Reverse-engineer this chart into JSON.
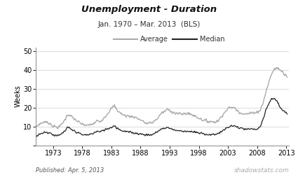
{
  "title": "Unemployment - Duration",
  "subtitle": "Jan. 1970 – Mar. 2013  (BLS)",
  "ylabel": "Weeks",
  "xlabel_ticks": [
    1973,
    1978,
    1983,
    1988,
    1993,
    1998,
    2003,
    2008,
    2013
  ],
  "ylim": [
    0,
    52
  ],
  "yticks": [
    0,
    10,
    20,
    30,
    40,
    50
  ],
  "legend_avg": "Average",
  "legend_med": "Median",
  "avg_color": "#aaaaaa",
  "med_color": "#222222",
  "published_text": "Published: Apr. 5, 2013",
  "watermark_text": "shadowstats.com",
  "background_color": "#ffffff",
  "avg_anchor_years": [
    1970.0,
    1970.5,
    1971.5,
    1972.5,
    1973.0,
    1974.0,
    1975.0,
    1975.5,
    1976.0,
    1977.0,
    1978.0,
    1979.0,
    1980.0,
    1980.5,
    1981.0,
    1982.0,
    1983.0,
    1983.5,
    1984.0,
    1985.0,
    1986.0,
    1987.0,
    1988.0,
    1989.0,
    1990.0,
    1991.0,
    1991.5,
    1992.0,
    1992.5,
    1993.0,
    1994.0,
    1995.0,
    1996.0,
    1997.0,
    1998.0,
    1999.0,
    2000.0,
    2001.0,
    2001.5,
    2002.0,
    2002.5,
    2003.0,
    2003.5,
    2004.0,
    2005.0,
    2006.0,
    2007.0,
    2007.5,
    2008.0,
    2008.5,
    2009.0,
    2009.5,
    2010.0,
    2010.5,
    2011.0,
    2011.5,
    2012.0,
    2012.5,
    2013.25
  ],
  "avg_anchor_vals": [
    9.5,
    11.0,
    12.5,
    11.5,
    10.0,
    9.5,
    13.5,
    16.5,
    15.5,
    13.0,
    11.0,
    10.5,
    11.5,
    13.0,
    12.5,
    15.5,
    19.5,
    21.0,
    18.5,
    16.0,
    15.5,
    15.0,
    13.5,
    11.5,
    12.0,
    14.5,
    17.0,
    17.5,
    19.0,
    18.5,
    17.0,
    16.5,
    17.0,
    16.0,
    14.5,
    13.0,
    12.5,
    12.5,
    13.5,
    16.0,
    17.5,
    19.5,
    20.0,
    20.0,
    17.5,
    16.5,
    17.0,
    17.5,
    17.5,
    18.5,
    22.0,
    28.0,
    33.0,
    38.0,
    40.5,
    41.0,
    40.0,
    38.5,
    36.5
  ],
  "med_anchor_years": [
    1970.0,
    1970.5,
    1971.5,
    1972.5,
    1973.0,
    1974.0,
    1975.0,
    1975.5,
    1976.0,
    1977.0,
    1978.0,
    1979.0,
    1980.0,
    1980.5,
    1981.0,
    1982.0,
    1983.0,
    1983.5,
    1984.0,
    1985.0,
    1986.0,
    1987.0,
    1988.0,
    1989.0,
    1990.0,
    1991.0,
    1991.5,
    1992.0,
    1992.5,
    1993.0,
    1994.0,
    1995.0,
    1996.0,
    1997.0,
    1998.0,
    1999.0,
    2000.0,
    2001.0,
    2001.5,
    2002.0,
    2002.5,
    2003.0,
    2003.5,
    2004.0,
    2005.0,
    2006.0,
    2007.0,
    2007.5,
    2008.0,
    2008.5,
    2009.0,
    2009.5,
    2010.0,
    2010.5,
    2011.0,
    2011.5,
    2012.0,
    2012.5,
    2013.25
  ],
  "med_anchor_vals": [
    4.5,
    5.5,
    7.0,
    6.5,
    5.5,
    5.0,
    7.5,
    9.5,
    8.5,
    7.0,
    5.5,
    5.5,
    6.5,
    7.5,
    7.0,
    8.5,
    9.5,
    10.5,
    9.0,
    7.5,
    7.0,
    6.5,
    6.0,
    5.5,
    5.5,
    7.5,
    8.5,
    9.0,
    9.5,
    9.0,
    8.0,
    7.5,
    7.5,
    7.0,
    6.5,
    6.0,
    5.5,
    6.0,
    6.5,
    7.5,
    8.5,
    9.5,
    10.0,
    10.5,
    9.0,
    8.5,
    8.5,
    8.5,
    8.5,
    9.5,
    13.0,
    18.5,
    22.0,
    24.5,
    25.0,
    23.0,
    20.0,
    18.0,
    16.5
  ]
}
